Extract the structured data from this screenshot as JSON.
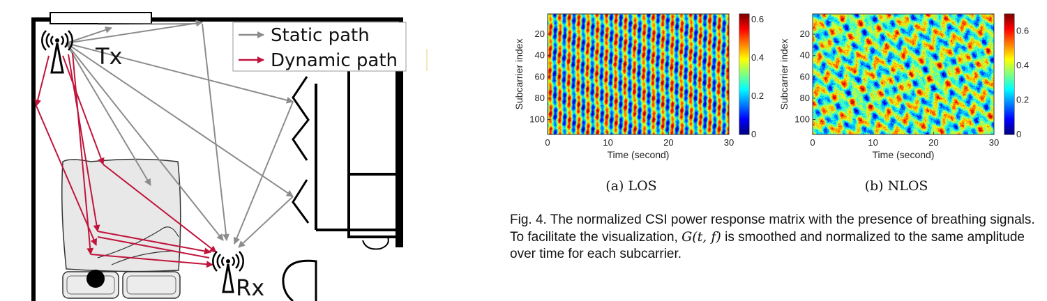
{
  "diagram": {
    "tx_label": "Tx",
    "rx_label": "Rx",
    "legend": {
      "static_label": "Static path",
      "dynamic_label": "Dynamic path",
      "static_color": "#8c8c8c",
      "dynamic_color": "#c0143c"
    },
    "icons": [
      "antenna-icon",
      "bed-icon",
      "person-head-icon"
    ]
  },
  "chart_data": [
    {
      "type": "heatmap",
      "xlabel": "Time (second)",
      "ylabel": "Subcarrier index",
      "xticks": [
        0,
        10,
        20,
        30
      ],
      "yticks": [
        20,
        40,
        60,
        80,
        100
      ],
      "xlim": [
        0,
        30
      ],
      "ylim": [
        1,
        114
      ],
      "colorbar_ticks": [
        0,
        0.2,
        0.4,
        0.6
      ],
      "colorbar_range": [
        0,
        0.63
      ],
      "colormap": "jet",
      "pattern": "vertical-stripes",
      "caption": "(a) LOS"
    },
    {
      "type": "heatmap",
      "xlabel": "Time (second)",
      "ylabel": "Subcarrier index",
      "xticks": [
        0,
        10,
        20,
        30
      ],
      "yticks": [
        20,
        40,
        60,
        80,
        100
      ],
      "xlim": [
        0,
        30
      ],
      "ylim": [
        1,
        114
      ],
      "colorbar_ticks": [
        0,
        0.2,
        0.4,
        0.6
      ],
      "colorbar_range": [
        0,
        0.7
      ],
      "colormap": "jet",
      "pattern": "diffuse",
      "caption": "(b) NLOS"
    }
  ],
  "caption": {
    "part1": "Fig. 4. The normalized CSI power response matrix with the presence of breathing signals. To facilitate the visualization, ",
    "math": "G(t, f)",
    "part2": " is smoothed and normalized to the same amplitude over time for each subcarrier."
  }
}
